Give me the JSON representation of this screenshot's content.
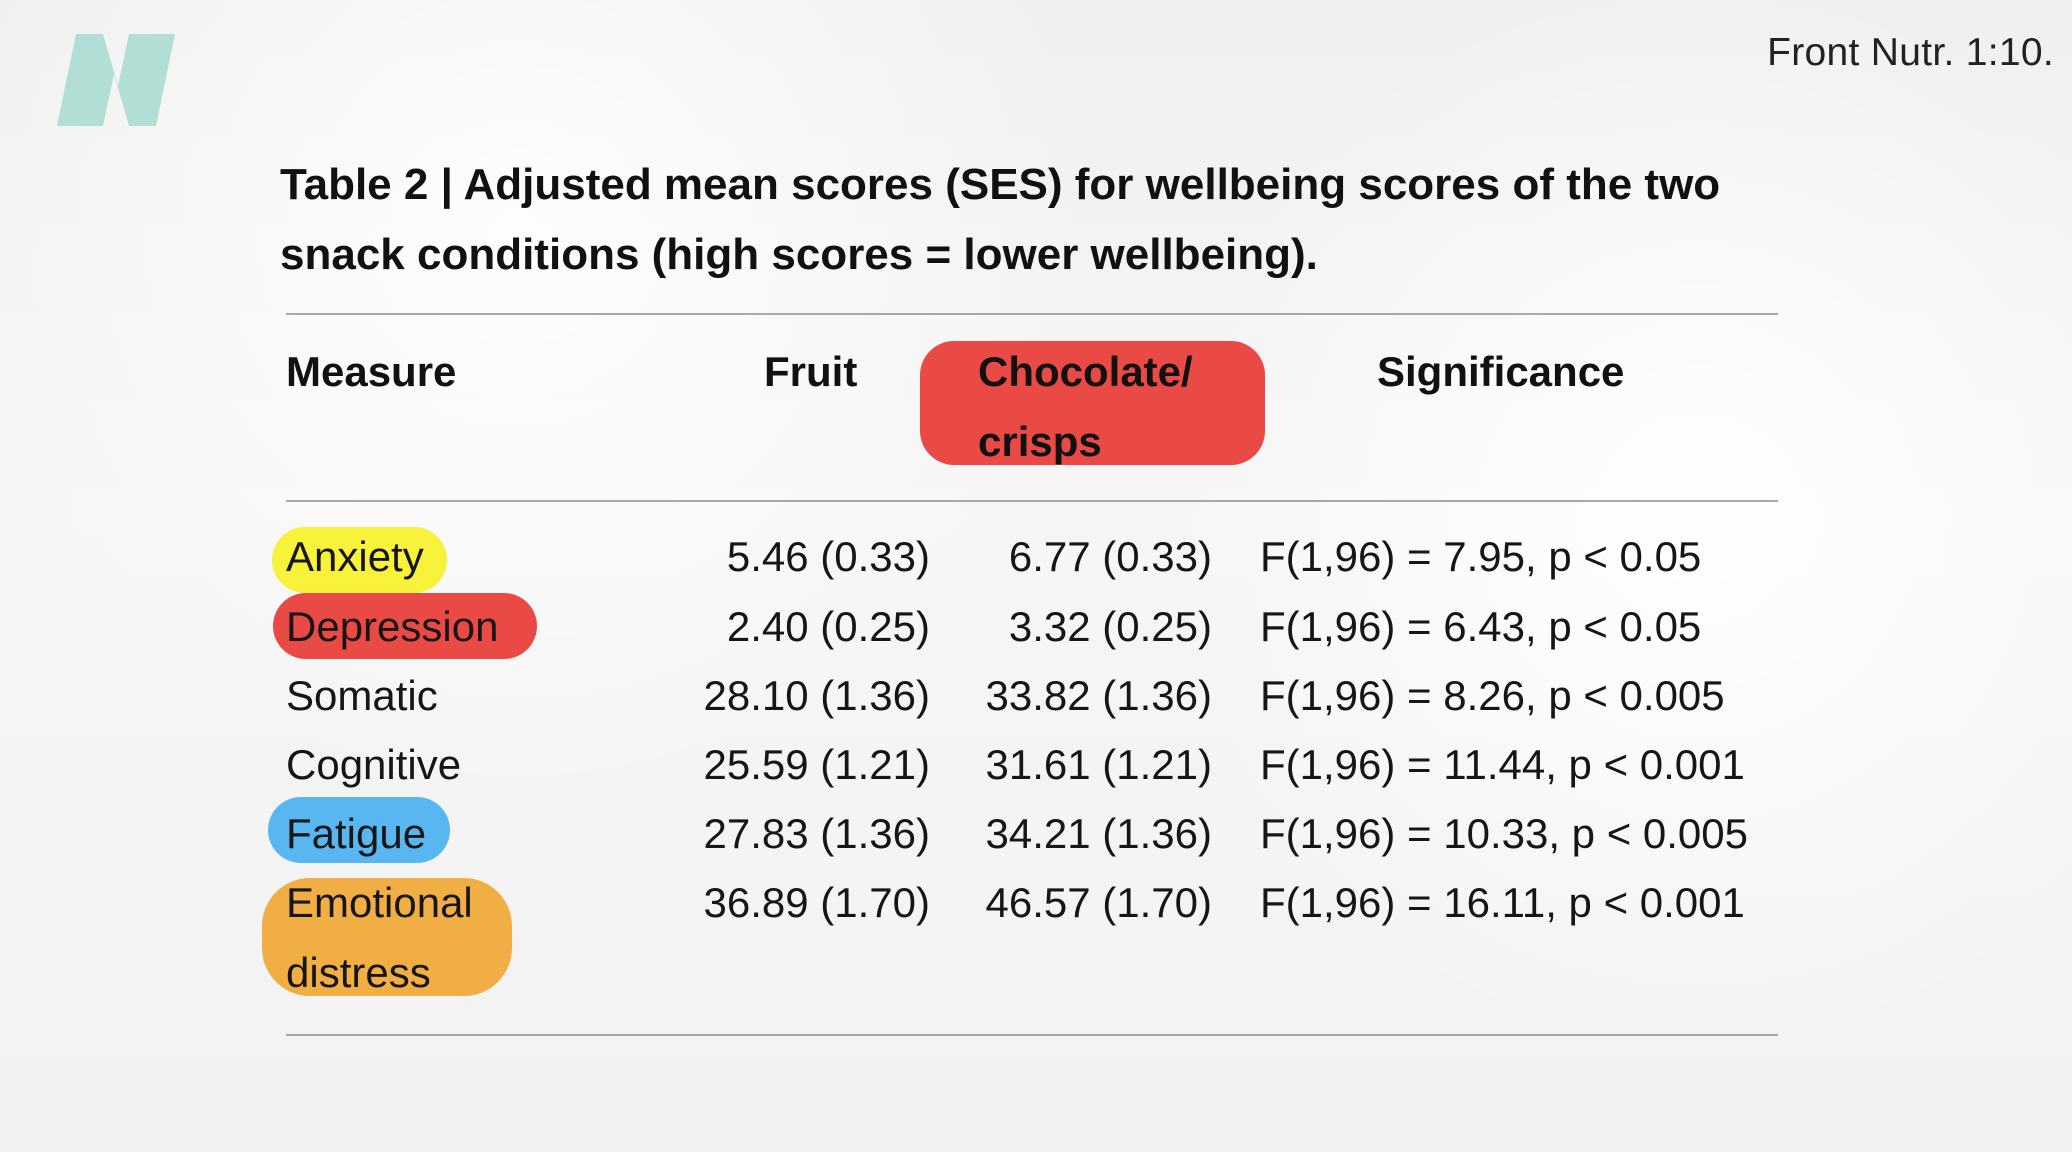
{
  "header": {
    "logo_icon": "nutrition-logo-icon",
    "source": "Front Nutr. 1:10."
  },
  "table": {
    "title": "Table 2 | Adjusted mean scores (SES) for wellbeing scores of the two snack conditions (high scores = lower wellbeing).",
    "columns": {
      "measure": "Measure",
      "fruit": "Fruit",
      "chocolate": "Chocolate/ crisps",
      "significance": "Significance"
    },
    "rows": [
      {
        "measure": "Anxiety",
        "fruit": "5.46 (0.33)",
        "chocolate": "6.77 (0.33)",
        "significance": "F(1,96) = 7.95, p < 0.05",
        "highlight": "#f8f23a"
      },
      {
        "measure": "Depression",
        "fruit": "2.40 (0.25)",
        "chocolate": "3.32 (0.25)",
        "significance": "F(1,96) = 6.43, p < 0.05",
        "highlight": "#ea4a45"
      },
      {
        "measure": "Somatic",
        "fruit": "28.10 (1.36)",
        "chocolate": "33.82 (1.36)",
        "significance": "F(1,96) = 8.26, p < 0.005",
        "highlight": ""
      },
      {
        "measure": "Cognitive",
        "fruit": "25.59 (1.21)",
        "chocolate": "31.61 (1.21)",
        "significance": "F(1,96) = 11.44, p < 0.001",
        "highlight": ""
      },
      {
        "measure": "Fatigue",
        "fruit": "27.83 (1.36)",
        "chocolate": "34.21 (1.36)",
        "significance": "F(1,96) = 10.33, p < 0.005",
        "highlight": "#58b7f1"
      },
      {
        "measure": "Emotional distress",
        "fruit": "36.89 (1.70)",
        "chocolate": "46.57 (1.70)",
        "significance": "F(1,96) = 16.11, p < 0.001",
        "highlight": "#f1ae45"
      }
    ]
  },
  "colors": {
    "logo": "#9ed8cd",
    "chocolate_header_highlight": "#ea4a45",
    "rule": "#a8a8a8",
    "text": "#111111"
  }
}
